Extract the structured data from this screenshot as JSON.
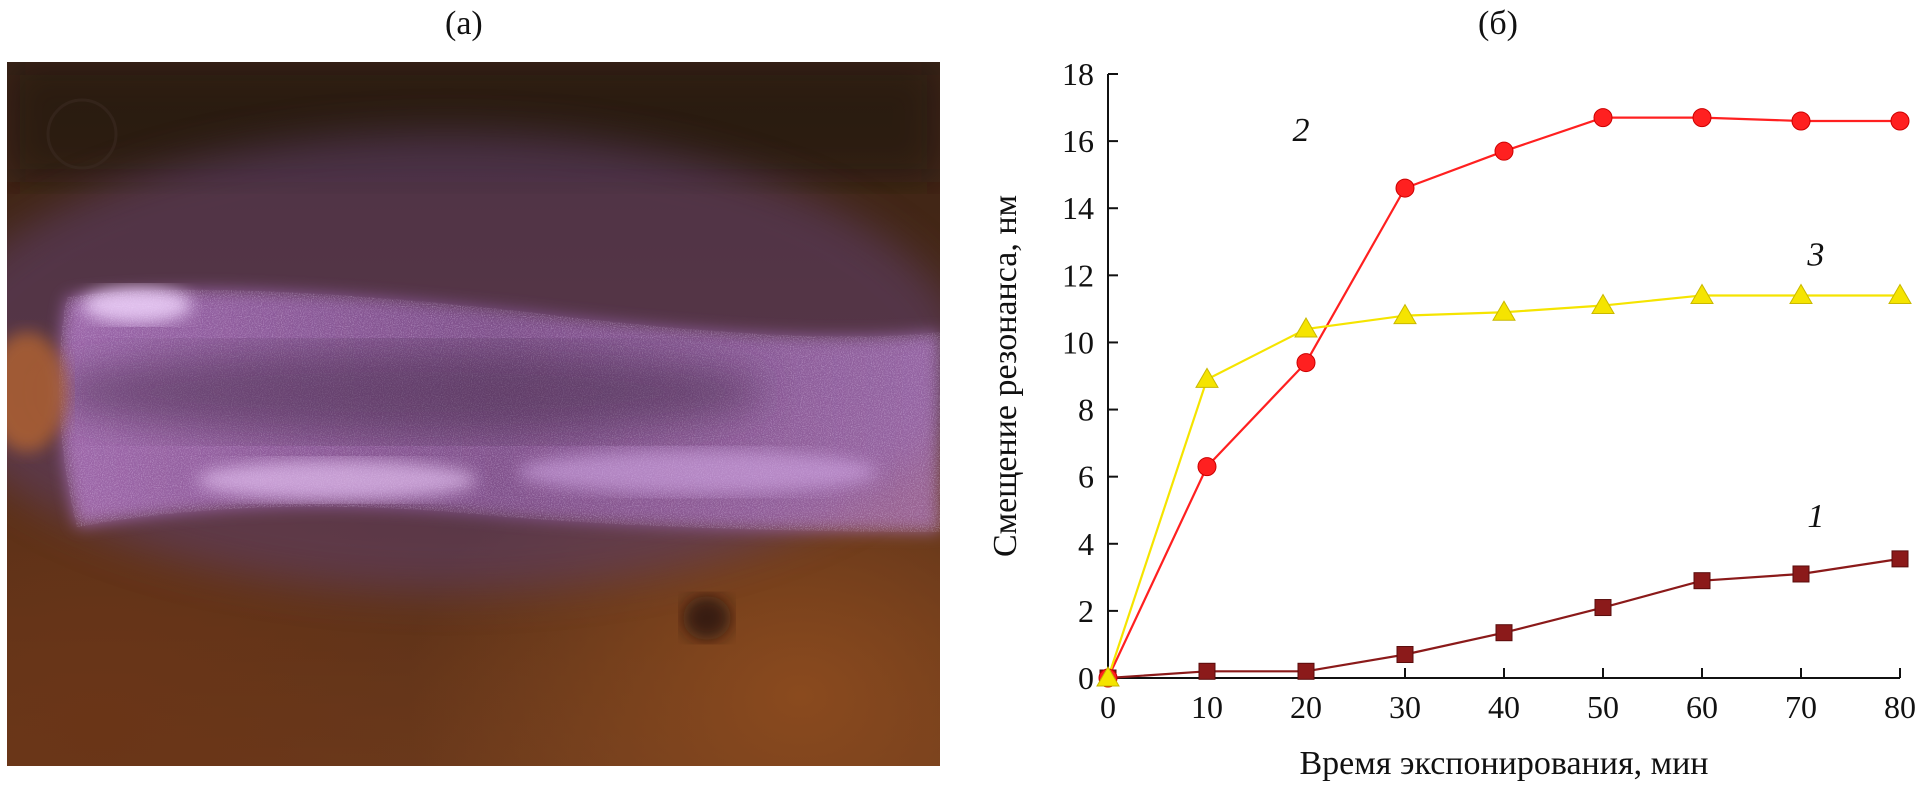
{
  "panels": {
    "a_label": "(а)",
    "b_label": "(б)"
  },
  "photo": {
    "description_icon": "glowing-discharge-photo-icon"
  },
  "colors": {
    "series1": "#8b1a1a",
    "series2": "#ff2020",
    "series3": "#f5e400",
    "glow": "#c98be0"
  },
  "chart_data": {
    "type": "line",
    "xlabel": "Время экспонирования, мин",
    "ylabel": "Смещение резонанса, нм",
    "xlim": [
      0,
      80
    ],
    "ylim": [
      0,
      18
    ],
    "xticks": [
      0,
      10,
      20,
      30,
      40,
      50,
      60,
      70,
      80
    ],
    "yticks": [
      0,
      2,
      4,
      6,
      8,
      10,
      12,
      14,
      16,
      18
    ],
    "grid": false,
    "x": [
      0,
      10,
      20,
      30,
      40,
      50,
      60,
      70,
      80
    ],
    "series": [
      {
        "name": "1",
        "marker": "square",
        "color": "#8b1a1a",
        "label_pos": [
          71.5,
          4.5
        ],
        "values": [
          0,
          0.2,
          0.2,
          0.7,
          1.35,
          2.1,
          2.9,
          3.1,
          3.55
        ]
      },
      {
        "name": "2",
        "marker": "circle",
        "color": "#ff2020",
        "label_pos": [
          19.5,
          16.0
        ],
        "values": [
          0,
          6.3,
          9.4,
          14.6,
          15.7,
          16.7,
          16.7,
          16.6,
          16.6
        ]
      },
      {
        "name": "3",
        "marker": "triangle",
        "color": "#f5e400",
        "label_pos": [
          71.5,
          12.3
        ],
        "values": [
          0,
          8.9,
          10.4,
          10.8,
          10.9,
          11.1,
          11.4,
          11.4,
          11.4
        ]
      }
    ]
  }
}
